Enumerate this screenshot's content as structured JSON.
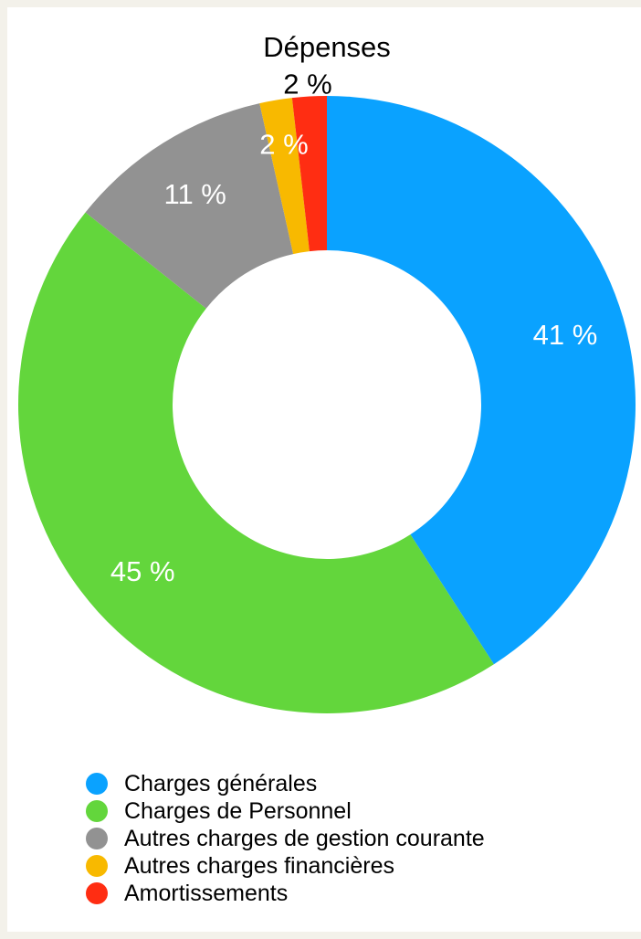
{
  "chart_data": {
    "type": "pie",
    "title": "Dépenses",
    "donut": true,
    "categories": [
      "Charges générales",
      "Charges de Personnel",
      "Autres charges de gestion courante",
      "Autres charges financières",
      "Amortissements"
    ],
    "values": [
      40.9,
      44.8,
      10.8,
      1.7,
      1.8
    ],
    "labels": [
      "41 %",
      "45 %",
      "11 %",
      "2 %",
      "2 %"
    ],
    "colors": [
      "#0aa2ff",
      "#63d63c",
      "#929292",
      "#f8b900",
      "#ff2d12"
    ],
    "legend_position": "bottom"
  }
}
